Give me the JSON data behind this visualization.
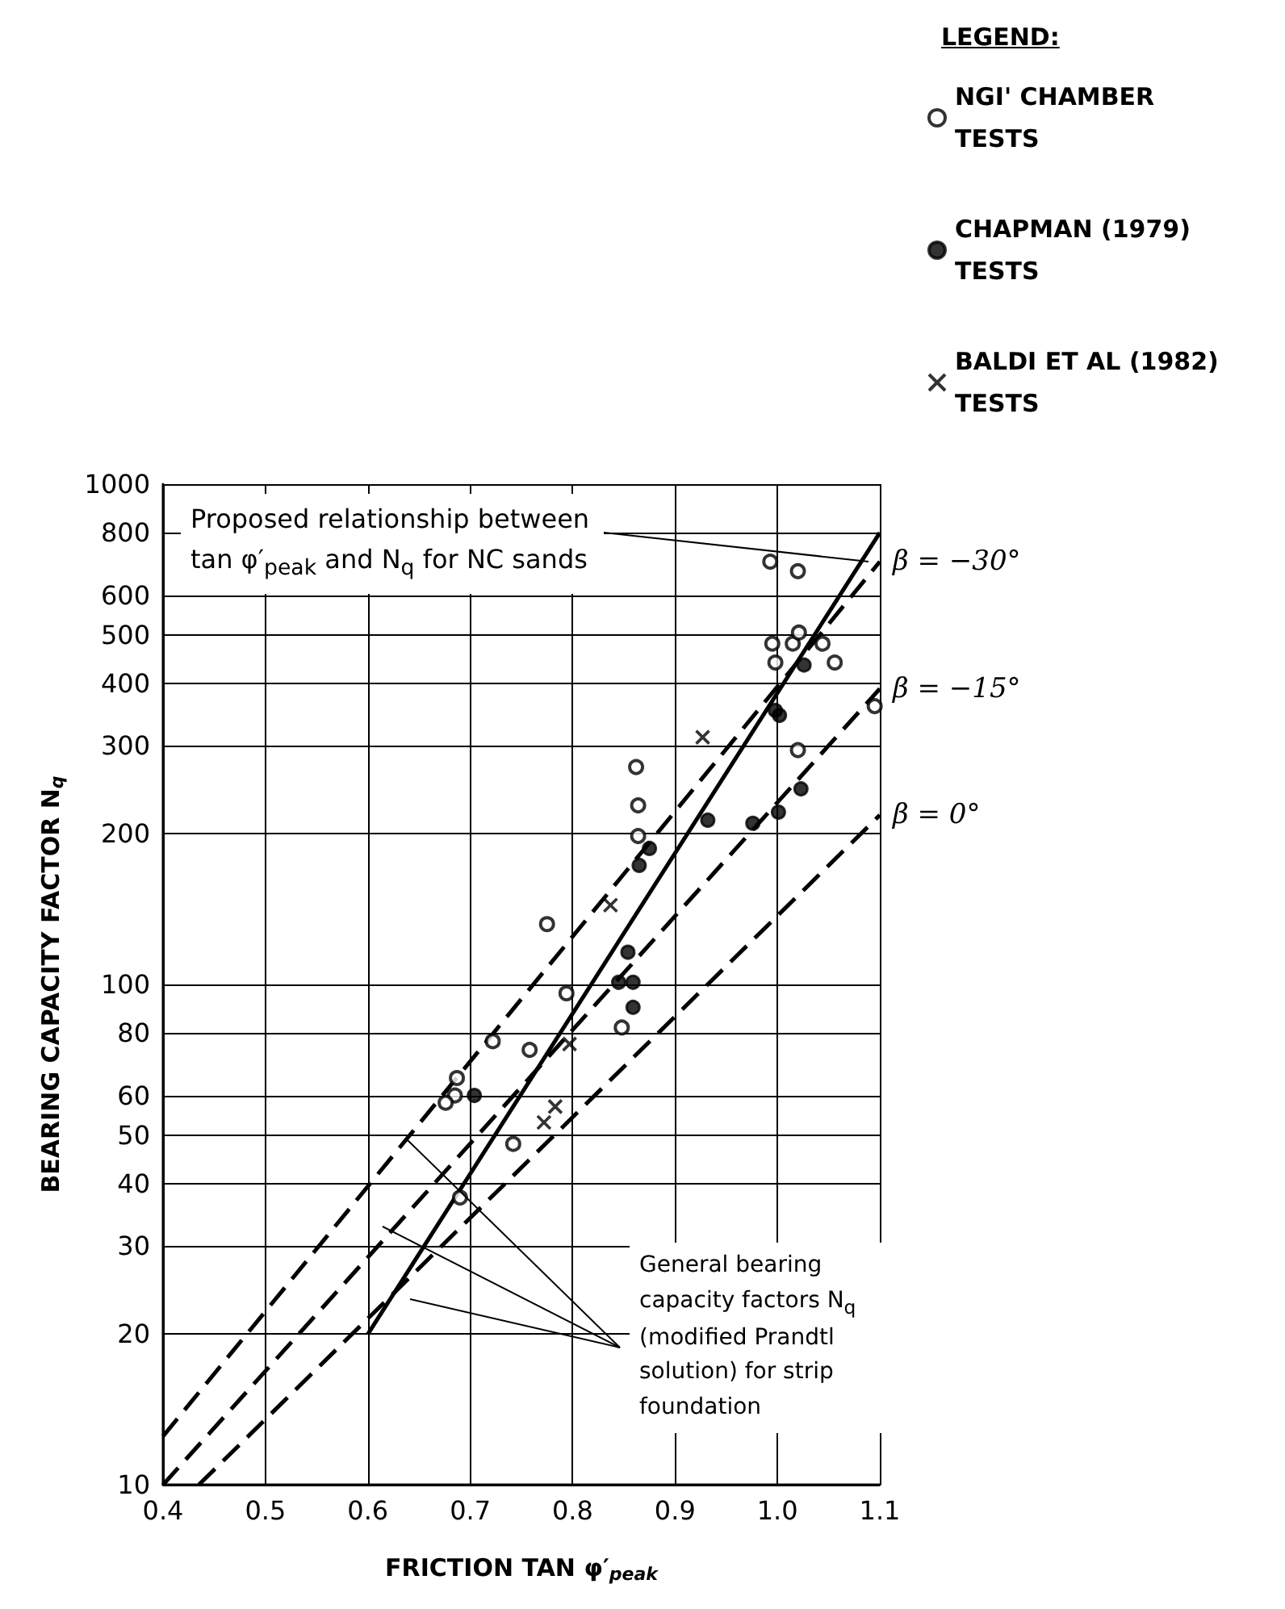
{
  "chart_data": {
    "type": "scatter",
    "xlabel": "FRICTION TAN φ′$_{peak}$",
    "ylabel": "BEARING CAPACITY FACTOR N$_{q}$",
    "legend_title": "LEGEND:",
    "legend": "top right",
    "log": "y",
    "grid": true,
    "xlim": [
      0.4,
      1.1
    ],
    "xticks": [
      0.4,
      0.5,
      0.6,
      0.7,
      0.8,
      0.9,
      {
        "value": 1.0,
        "label": "1.0"
      },
      1.1
    ],
    "ylim": [
      10,
      1000
    ],
    "yticks": [
      10,
      20,
      30,
      40,
      50,
      60,
      80,
      100,
      200,
      300,
      400,
      500,
      600,
      800,
      1000
    ],
    "annotations": [
      "Proposed relationship between tan φ′$_{peak}$ and N$_{q}$ for NC sands",
      "General bearing capacity factors N$_{q}$ (modified Prandtl solution) for strip foundation"
    ],
    "series": [
      {
        "name": "NGI' CHAMBER TESTS",
        "marker": "circle",
        "color": "#000000",
        "x": [
          0.993,
          1.02,
          0.995,
          1.015,
          1.021,
          1.044,
          0.998,
          1.056,
          1.095,
          1.02,
          0.862,
          0.864,
          0.864,
          0.775,
          0.794,
          0.848,
          0.722,
          0.758,
          0.687,
          0.685,
          0.676,
          0.742,
          0.69
        ],
        "values": [
          700,
          670,
          480,
          480,
          505,
          480,
          440,
          440,
          360,
          294,
          272,
          228,
          198,
          132,
          96,
          82,
          77,
          74,
          65,
          60,
          58,
          48,
          37.5
        ]
      },
      {
        "name": "CHAPMAN (1979) TESTS",
        "marker": "circle",
        "color": "#000000",
        "x": [
          1.026,
          0.998,
          1.002,
          1.023,
          1.001,
          0.976,
          0.932,
          0.875,
          0.865,
          0.854,
          0.845,
          0.859,
          0.859,
          0.704
        ],
        "values": [
          435,
          353,
          345,
          246,
          221,
          210,
          213,
          187,
          173,
          116,
          101,
          101,
          90,
          60
        ]
      },
      {
        "name": "BALDI ET AL (1982) TESTS",
        "marker": "cross",
        "color": "#000000",
        "x": [
          0.927,
          0.837,
          0.797,
          0.783,
          0.772
        ],
        "values": [
          312,
          144,
          76,
          57,
          53
        ]
      },
      {
        "name": "β = −30°",
        "type": "line",
        "marker": "none",
        "line_style": "dashed",
        "color": "#000000",
        "x": [
          0.4,
          1.1
        ],
        "values": [
          12.5,
          700
        ]
      },
      {
        "name": "β = −15°",
        "type": "line",
        "marker": "none",
        "line_style": "dashed",
        "color": "#000000",
        "x": [
          0.4,
          1.1
        ],
        "values": [
          10,
          390
        ]
      },
      {
        "name": "β = 0°",
        "type": "line",
        "marker": "none",
        "line_style": "dashed",
        "color": "#000000",
        "x": [
          0.435,
          1.1
        ],
        "values": [
          10,
          218
        ]
      },
      {
        "type": "line",
        "marker": "none",
        "line_style": "solid",
        "color": "#000000",
        "x": [
          0.6,
          1.1
        ],
        "values": [
          20,
          800
        ]
      }
    ]
  }
}
